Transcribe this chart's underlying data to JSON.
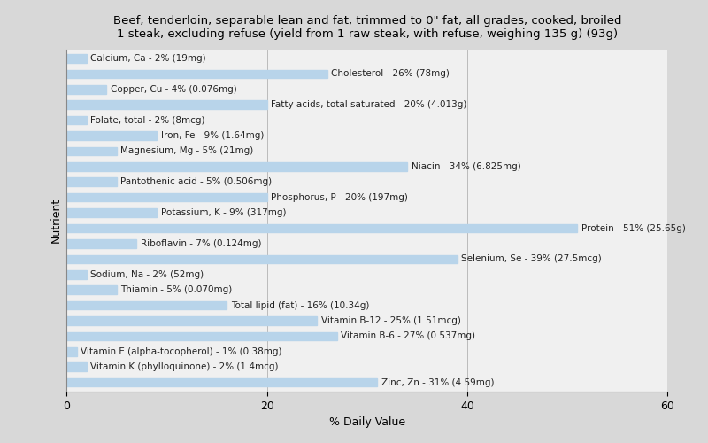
{
  "title": "Beef, tenderloin, separable lean and fat, trimmed to 0\" fat, all grades, cooked, broiled\n1 steak, excluding refuse (yield from 1 raw steak, with refuse, weighing 135 g) (93g)",
  "xlabel": "% Daily Value",
  "ylabel": "Nutrient",
  "xlim": [
    0,
    60
  ],
  "xticks": [
    0,
    20,
    40,
    60
  ],
  "background_color": "#d8d8d8",
  "plot_background_color": "#f0f0f0",
  "bar_color": "#b8d4ea",
  "nutrients": [
    {
      "label": "Calcium, Ca - 2% (19mg)",
      "value": 2
    },
    {
      "label": "Cholesterol - 26% (78mg)",
      "value": 26
    },
    {
      "label": "Copper, Cu - 4% (0.076mg)",
      "value": 4
    },
    {
      "label": "Fatty acids, total saturated - 20% (4.013g)",
      "value": 20
    },
    {
      "label": "Folate, total - 2% (8mcg)",
      "value": 2
    },
    {
      "label": "Iron, Fe - 9% (1.64mg)",
      "value": 9
    },
    {
      "label": "Magnesium, Mg - 5% (21mg)",
      "value": 5
    },
    {
      "label": "Niacin - 34% (6.825mg)",
      "value": 34
    },
    {
      "label": "Pantothenic acid - 5% (0.506mg)",
      "value": 5
    },
    {
      "label": "Phosphorus, P - 20% (197mg)",
      "value": 20
    },
    {
      "label": "Potassium, K - 9% (317mg)",
      "value": 9
    },
    {
      "label": "Protein - 51% (25.65g)",
      "value": 51
    },
    {
      "label": "Riboflavin - 7% (0.124mg)",
      "value": 7
    },
    {
      "label": "Selenium, Se - 39% (27.5mcg)",
      "value": 39
    },
    {
      "label": "Sodium, Na - 2% (52mg)",
      "value": 2
    },
    {
      "label": "Thiamin - 5% (0.070mg)",
      "value": 5
    },
    {
      "label": "Total lipid (fat) - 16% (10.34g)",
      "value": 16
    },
    {
      "label": "Vitamin B-12 - 25% (1.51mcg)",
      "value": 25
    },
    {
      "label": "Vitamin B-6 - 27% (0.537mg)",
      "value": 27
    },
    {
      "label": "Vitamin E (alpha-tocopherol) - 1% (0.38mg)",
      "value": 1
    },
    {
      "label": "Vitamin K (phylloquinone) - 2% (1.4mcg)",
      "value": 2
    },
    {
      "label": "Zinc, Zn - 31% (4.59mg)",
      "value": 31
    }
  ],
  "title_fontsize": 9.5,
  "axis_label_fontsize": 9,
  "bar_label_fontsize": 7.5,
  "tick_fontsize": 9,
  "fig_width": 8.0,
  "fig_height": 5.0
}
